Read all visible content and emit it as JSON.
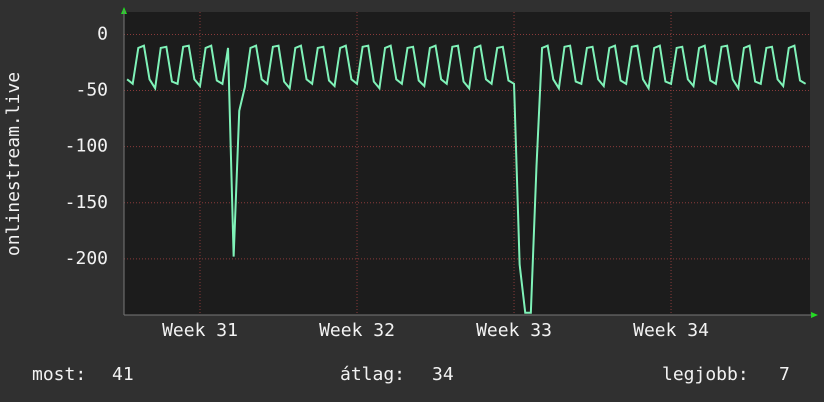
{
  "chart_data": {
    "type": "line",
    "y_label": "onlinestream.live",
    "color": "#7ff2b8",
    "grid": true,
    "xlim": [
      30.516,
      34.885
    ],
    "xticks": [
      {
        "value": 31,
        "label": "Week 31"
      },
      {
        "value": 32,
        "label": "Week 32"
      },
      {
        "value": 33,
        "label": "Week 33"
      },
      {
        "value": 34,
        "label": "Week 34"
      }
    ],
    "ylim": [
      -250,
      20
    ],
    "yticks": [
      0,
      -50,
      -100,
      -150,
      -200
    ],
    "x": [
      30.5357,
      30.5714,
      30.6071,
      30.6429,
      30.6786,
      30.7143,
      30.75,
      30.7857,
      30.8214,
      30.8571,
      30.8929,
      30.9286,
      30.9643,
      31,
      31.0357,
      31.0714,
      31.1071,
      31.1429,
      31.1786,
      31.2143,
      31.25,
      31.2857,
      31.3214,
      31.3571,
      31.3929,
      31.4286,
      31.4643,
      31.5,
      31.5357,
      31.5714,
      31.6071,
      31.6429,
      31.6786,
      31.7143,
      31.75,
      31.7857,
      31.8214,
      31.8571,
      31.8929,
      31.9286,
      31.9643,
      32,
      32.0357,
      32.0714,
      32.1071,
      32.1429,
      32.1786,
      32.2143,
      32.25,
      32.2857,
      32.3214,
      32.3571,
      32.3929,
      32.4286,
      32.4643,
      32.5,
      32.5357,
      32.5714,
      32.6071,
      32.6429,
      32.6786,
      32.7143,
      32.75,
      32.7857,
      32.8214,
      32.8571,
      32.8929,
      32.9286,
      32.9643,
      33,
      33.0357,
      33.0714,
      33.1071,
      33.1429,
      33.1786,
      33.2143,
      33.25,
      33.2857,
      33.3214,
      33.3571,
      33.3929,
      33.4286,
      33.4643,
      33.5,
      33.5357,
      33.5714,
      33.6071,
      33.6429,
      33.6786,
      33.7143,
      33.75,
      33.7857,
      33.8214,
      33.8571,
      33.8929,
      33.9286,
      33.9643,
      34,
      34.0357,
      34.0714,
      34.1071,
      34.1429,
      34.1786,
      34.2143,
      34.25,
      34.2857,
      34.3214,
      34.3571,
      34.3929,
      34.4286,
      34.4643,
      34.5,
      34.5357,
      34.5714,
      34.6071,
      34.6429,
      34.6786,
      34.7143,
      34.75,
      34.7857,
      34.8214,
      34.8571
    ],
    "values": [
      -40,
      -44,
      -12,
      -10,
      -40,
      -48,
      -12,
      -11,
      -42,
      -44,
      -11,
      -10,
      -40,
      -46,
      -12,
      -10,
      -41,
      -44,
      -12,
      -198,
      -68,
      -47,
      -12,
      -10,
      -40,
      -44,
      -11,
      -10,
      -42,
      -48,
      -12,
      -10,
      -40,
      -44,
      -12,
      -11,
      -41,
      -46,
      -12,
      -10,
      -40,
      -44,
      -11,
      -10,
      -42,
      -48,
      -12,
      -10,
      -40,
      -44,
      -12,
      -11,
      -41,
      -46,
      -12,
      -10,
      -40,
      -44,
      -11,
      -10,
      -42,
      -48,
      -12,
      -10,
      -40,
      -44,
      -12,
      -11,
      -41,
      -44,
      -205,
      -248,
      -248,
      -118,
      -12,
      -10,
      -40,
      -48,
      -11,
      -10,
      -42,
      -44,
      -12,
      -11,
      -40,
      -46,
      -12,
      -10,
      -41,
      -44,
      -11,
      -10,
      -40,
      -48,
      -12,
      -10,
      -42,
      -44,
      -12,
      -11,
      -40,
      -46,
      -12,
      -10,
      -41,
      -44,
      -11,
      -10,
      -40,
      -48,
      -12,
      -10,
      -42,
      -44,
      -12,
      -11,
      -40,
      -46,
      -12,
      -10,
      -41,
      -44
    ]
  },
  "stats": [
    {
      "label": "most:",
      "value": 41
    },
    {
      "label": "átlag:",
      "value": 34
    },
    {
      "label": "legjobb:",
      "value": 7
    }
  ]
}
